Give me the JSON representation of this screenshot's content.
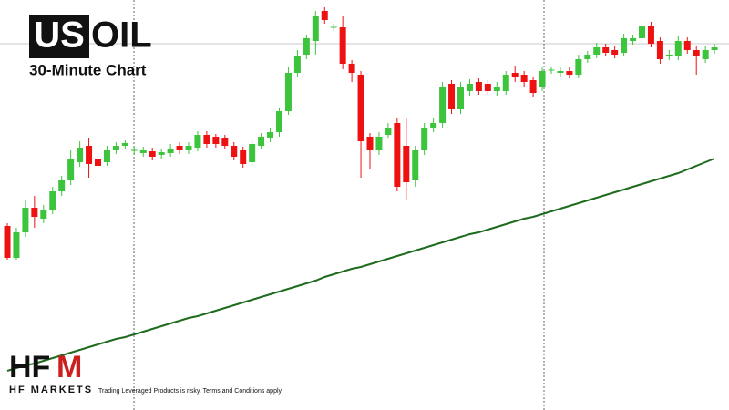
{
  "chart_data": {
    "type": "candlestick",
    "title_box": "US",
    "title_rest": "OIL",
    "subtitle": "30-Minute Chart",
    "up_color": "#3cc43c",
    "down_color": "#ee1111",
    "ylim": [
      0,
      450
    ],
    "open": [
      202,
      167,
      195,
      222,
      210,
      220,
      240,
      252,
      272,
      290,
      275,
      272,
      285,
      290,
      285,
      282,
      284,
      280,
      282,
      290,
      285,
      288,
      302,
      300,
      298,
      290,
      285,
      272,
      290,
      298,
      305,
      328,
      370,
      390,
      405,
      438,
      420,
      420,
      380,
      368,
      300,
      285,
      302,
      315,
      290,
      252,
      285,
      310,
      315,
      358,
      330,
      350,
      360,
      358,
      350,
      350,
      370,
      368,
      362,
      355,
      373,
      370,
      372,
      368,
      385,
      390,
      398,
      395,
      392,
      405,
      408,
      422,
      405,
      388,
      388,
      405,
      395,
      385,
      395
    ],
    "high": [
      205,
      200,
      230,
      235,
      225,
      245,
      257,
      285,
      295,
      298,
      280,
      290,
      294,
      296,
      290,
      289,
      288,
      287,
      292,
      294,
      294,
      306,
      306,
      303,
      302,
      294,
      289,
      296,
      304,
      309,
      332,
      376,
      395,
      412,
      438,
      442,
      424,
      432,
      384,
      372,
      304,
      305,
      315,
      320,
      320,
      290,
      315,
      320,
      360,
      362,
      360,
      363,
      364,
      362,
      360,
      372,
      378,
      372,
      366,
      377,
      377,
      376,
      376,
      390,
      394,
      403,
      402,
      399,
      413,
      412,
      427,
      426,
      409,
      395,
      410,
      409,
      400,
      400,
      402
    ],
    "low": [
      165,
      165,
      190,
      200,
      205,
      215,
      235,
      247,
      267,
      255,
      263,
      268,
      281,
      287,
      280,
      278,
      274,
      276,
      278,
      281,
      281,
      284,
      288,
      288,
      286,
      274,
      266,
      268,
      286,
      294,
      300,
      324,
      365,
      385,
      390,
      424,
      416,
      374,
      360,
      255,
      265,
      280,
      298,
      240,
      230,
      245,
      280,
      305,
      310,
      325,
      325,
      345,
      346,
      346,
      345,
      346,
      360,
      355,
      343,
      350,
      369,
      366,
      364,
      364,
      381,
      386,
      388,
      386,
      388,
      401,
      404,
      398,
      380,
      384,
      384,
      391,
      368,
      381,
      391
    ],
    "close": [
      167,
      195,
      222,
      212,
      220,
      240,
      252,
      275,
      288,
      270,
      268,
      285,
      290,
      293,
      285.5,
      285,
      278,
      283,
      287,
      285,
      290,
      302,
      292,
      292,
      290,
      278,
      270,
      292,
      300,
      305,
      328,
      370,
      388,
      408,
      432,
      428,
      420.5,
      380,
      370,
      295,
      285,
      300,
      310,
      245,
      250,
      285,
      310,
      315,
      355,
      330,
      355,
      358,
      350,
      350,
      355,
      368,
      365,
      360,
      348,
      372,
      373.5,
      372,
      368,
      385,
      390,
      398,
      392,
      390,
      408,
      408,
      422,
      402,
      385,
      390,
      405,
      395,
      388,
      395,
      398
    ],
    "overlay": {
      "type": "line",
      "color": "#1e6b1e",
      "values": [
        43,
        46,
        49,
        51,
        54,
        57,
        60,
        63,
        66,
        69,
        72,
        75,
        78,
        80,
        83,
        86,
        89,
        92,
        95,
        98,
        101,
        103,
        106,
        109,
        112,
        115,
        118,
        121,
        124,
        127,
        130,
        133,
        136,
        139,
        142,
        146,
        149,
        152,
        155,
        157,
        160,
        163,
        166,
        169,
        172,
        175,
        178,
        181,
        184,
        187,
        190,
        193,
        195,
        198,
        201,
        204,
        207,
        210,
        212,
        215,
        218,
        221,
        224,
        227,
        230,
        233,
        236,
        239,
        242,
        245,
        248,
        251,
        254,
        257,
        260,
        264,
        268,
        272,
        276
      ]
    }
  },
  "brand": {
    "logo_left": "HF",
    "logo_right": "M",
    "name": "HF MARKETS",
    "disclaimer": "Trading Leveraged Products is risky. Terms and Conditions apply."
  }
}
